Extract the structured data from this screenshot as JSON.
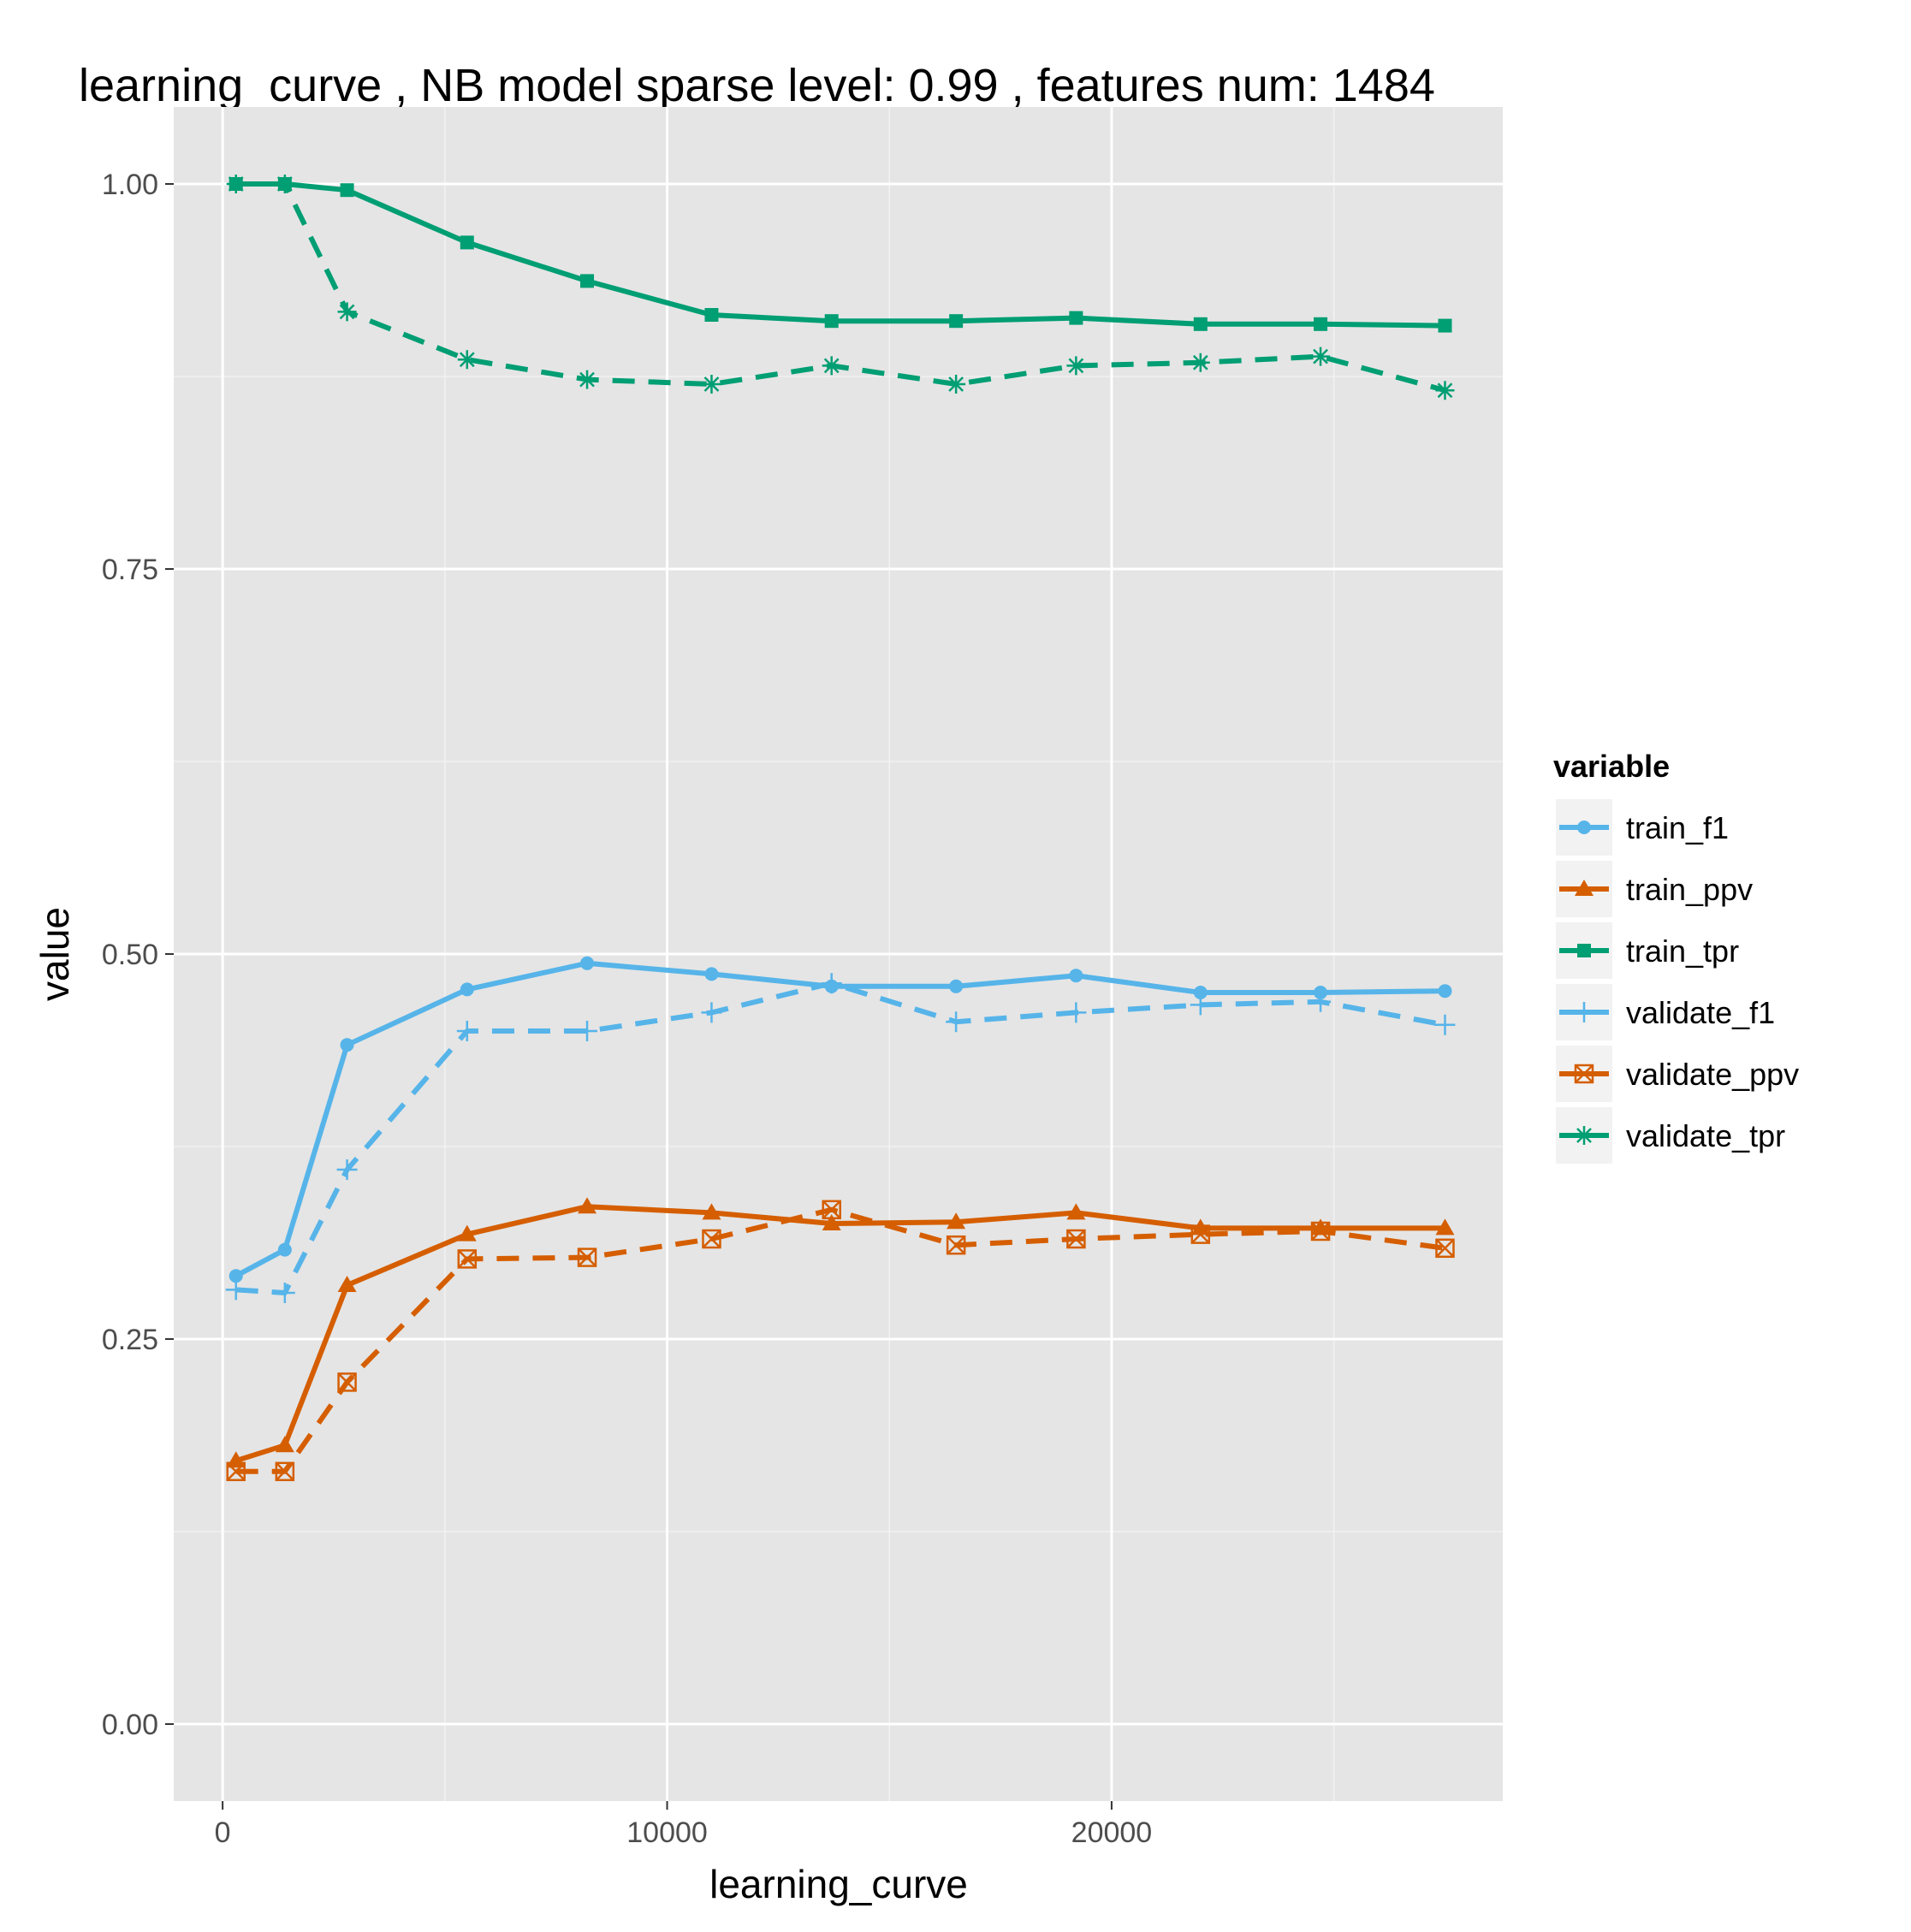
{
  "chart_data": {
    "type": "line",
    "title": "learning_curve ,  NB model sparse level: 0.99 , features num: 1484",
    "xlabel": "learning_curve",
    "ylabel": "value",
    "xlim": [
      -1100,
      28800
    ],
    "ylim": [
      -0.05,
      1.05
    ],
    "x_ticks": [
      0,
      10000,
      20000
    ],
    "x_tick_labels": [
      "0",
      "10000",
      "20000"
    ],
    "x_minor_ticks": [
      5000,
      15000,
      25000
    ],
    "y_ticks": [
      0.0,
      0.25,
      0.5,
      0.75,
      1.0
    ],
    "y_tick_labels": [
      "0.00",
      "0.25",
      "0.50",
      "0.75",
      "1.00"
    ],
    "y_minor_ticks": [
      0.125,
      0.375,
      0.625,
      0.875
    ],
    "grid": true,
    "legend_position": "right",
    "legend_title": "variable",
    "colors": {
      "panel_bg": "#e5e5e5",
      "grid": "#ffffff",
      "f1": "#56b4e9",
      "ppv": "#d55e00",
      "tpr": "#009e73"
    },
    "x": [
      300,
      1400,
      2800,
      5500,
      8200,
      11000,
      13700,
      16500,
      19200,
      22000,
      24700,
      27500
    ],
    "series": [
      {
        "name": "train_f1",
        "values": [
          0.291,
          0.308,
          0.441,
          0.477,
          0.494,
          0.487,
          0.479,
          0.479,
          0.486,
          0.475,
          0.475,
          0.476
        ],
        "color": "#56b4e9",
        "dash": "solid",
        "marker": "circle"
      },
      {
        "name": "train_ppv",
        "values": [
          0.171,
          0.181,
          0.285,
          0.318,
          0.336,
          0.332,
          0.325,
          0.326,
          0.332,
          0.322,
          0.322,
          0.322
        ],
        "color": "#d55e00",
        "dash": "solid",
        "marker": "triangle"
      },
      {
        "name": "train_tpr",
        "values": [
          1.0,
          1.0,
          0.996,
          0.962,
          0.937,
          0.915,
          0.911,
          0.911,
          0.913,
          0.909,
          0.909,
          0.908
        ],
        "color": "#009e73",
        "dash": "solid",
        "marker": "square"
      },
      {
        "name": "validate_f1",
        "values": [
          0.282,
          0.28,
          0.36,
          0.45,
          0.45,
          0.462,
          0.481,
          0.456,
          0.462,
          0.467,
          0.469,
          0.454
        ],
        "color": "#56b4e9",
        "dash": "dashed",
        "marker": "plus"
      },
      {
        "name": "validate_ppv",
        "values": [
          0.164,
          0.164,
          0.222,
          0.302,
          0.303,
          0.315,
          0.334,
          0.311,
          0.315,
          0.318,
          0.32,
          0.309
        ],
        "color": "#d55e00",
        "dash": "dashed",
        "marker": "boxx"
      },
      {
        "name": "validate_tpr",
        "values": [
          1.0,
          1.0,
          0.917,
          0.886,
          0.873,
          0.87,
          0.882,
          0.87,
          0.882,
          0.884,
          0.888,
          0.866
        ],
        "color": "#009e73",
        "dash": "dashed",
        "marker": "asterisk"
      }
    ]
  }
}
